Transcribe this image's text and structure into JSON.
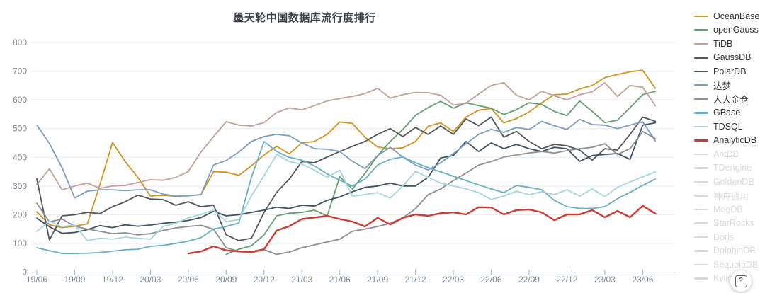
{
  "help_button": {
    "label": "?"
  },
  "chart_data": {
    "type": "line",
    "title": "墨天轮中国数据库流行度排行",
    "xlabel": "",
    "ylabel": "",
    "ylim": [
      0,
      800
    ],
    "y_ticks": [
      0,
      100,
      200,
      300,
      400,
      500,
      600,
      700,
      800
    ],
    "grid": "horizontal",
    "legend_position": "right",
    "x_start": "19/06",
    "x_step": "1 month",
    "x_tick_labels": [
      "19/06",
      "19/09",
      "19/12",
      "20/03",
      "20/06",
      "20/09",
      "20/12",
      "21/03",
      "21/06",
      "21/09",
      "21/12",
      "22/03",
      "22/06",
      "22/09",
      "22/12",
      "23/03",
      "23/06"
    ],
    "series": [
      {
        "name": "OceanBase",
        "color": "#d6921e",
        "disabled": false,
        "width": 1.8,
        "values": [
          210,
          165,
          155,
          160,
          168,
          305,
          452,
          385,
          330,
          265,
          268,
          264,
          266,
          270,
          350,
          348,
          337,
          370,
          408,
          438,
          412,
          450,
          455,
          480,
          523,
          518,
          470,
          436,
          430,
          433,
          455,
          508,
          520,
          490,
          540,
          564,
          570,
          520,
          535,
          558,
          590,
          618,
          620,
          638,
          650,
          678,
          688,
          698,
          703,
          640
        ]
      },
      {
        "name": "openGauss",
        "color": "#63a071",
        "disabled": false,
        "width": 1.8,
        "values": [
          null,
          null,
          null,
          null,
          null,
          null,
          null,
          null,
          null,
          null,
          null,
          null,
          null,
          null,
          null,
          62,
          80,
          92,
          130,
          196,
          205,
          208,
          216,
          196,
          332,
          290,
          344,
          406,
          455,
          497,
          546,
          573,
          595,
          571,
          590,
          580,
          571,
          549,
          566,
          590,
          584,
          560,
          545,
          596,
          560,
          521,
          529,
          573,
          618,
          630
        ]
      },
      {
        "name": "TiDB",
        "color": "#c4a098",
        "disabled": false,
        "width": 1.8,
        "values": [
          305,
          360,
          287,
          300,
          310,
          292,
          300,
          302,
          312,
          322,
          320,
          330,
          350,
          418,
          472,
          524,
          512,
          509,
          521,
          556,
          572,
          565,
          580,
          596,
          605,
          612,
          622,
          640,
          606,
          618,
          626,
          625,
          616,
          582,
          588,
          620,
          650,
          660,
          616,
          600,
          630,
          614,
          600,
          618,
          628,
          660,
          612,
          650,
          644,
          580
        ]
      },
      {
        "name": "GaussDB",
        "color": "#53575c",
        "disabled": false,
        "width": 1.8,
        "values": [
          325,
          112,
          196,
          200,
          208,
          204,
          228,
          245,
          268,
          255,
          253,
          233,
          245,
          228,
          233,
          130,
          110,
          118,
          208,
          278,
          324,
          385,
          381,
          401,
          420,
          438,
          455,
          480,
          500,
          472,
          504,
          480,
          509,
          480,
          534,
          510,
          540,
          470,
          490,
          455,
          430,
          445,
          440,
          425,
          390,
          430,
          425,
          480,
          540,
          525
        ]
      },
      {
        "name": "PolarDB",
        "color": "#3d5266",
        "disabled": false,
        "width": 1.8,
        "values": [
          188,
          158,
          135,
          138,
          148,
          162,
          155,
          165,
          160,
          164,
          170,
          174,
          180,
          190,
          212,
          196,
          200,
          208,
          216,
          226,
          222,
          233,
          230,
          250,
          262,
          280,
          295,
          300,
          310,
          300,
          300,
          330,
          398,
          406,
          455,
          420,
          450,
          430,
          445,
          430,
          420,
          435,
          430,
          386,
          406,
          410,
          413,
          393,
          512,
          520
        ]
      },
      {
        "name": "达梦",
        "color": "#7d9cc4",
        "disabled": false,
        "width": 1.8,
        "values": [
          512,
          448,
          364,
          258,
          282,
          287,
          287,
          284,
          287,
          287,
          272,
          265,
          266,
          270,
          373,
          389,
          418,
          455,
          472,
          480,
          475,
          450,
          430,
          428,
          420,
          386,
          361,
          406,
          435,
          401,
          373,
          356,
          381,
          413,
          447,
          480,
          497,
          487,
          504,
          497,
          525,
          510,
          497,
          532,
          514,
          512,
          500,
          512,
          524,
          457
        ]
      },
      {
        "name": "人大金仓",
        "color": "#8c8f93",
        "disabled": false,
        "width": 1.8,
        "values": [
          240,
          175,
          185,
          160,
          150,
          142,
          134,
          137,
          130,
          134,
          145,
          154,
          159,
          163,
          150,
          85,
          73,
          68,
          78,
          62,
          70,
          85,
          95,
          105,
          115,
          142,
          150,
          159,
          170,
          189,
          221,
          270,
          290,
          319,
          345,
          373,
          385,
          401,
          408,
          415,
          420,
          415,
          423,
          430,
          435,
          447,
          410,
          430,
          490,
          465
        ]
      },
      {
        "name": "GBase",
        "color": "#68aec4",
        "disabled": false,
        "width": 1.8,
        "values": [
          85,
          75,
          65,
          65,
          66,
          68,
          73,
          78,
          80,
          90,
          93,
          100,
          108,
          120,
          150,
          159,
          171,
          330,
          455,
          420,
          400,
          390,
          370,
          342,
          320,
          300,
          324,
          373,
          393,
          401,
          381,
          364,
          349,
          334,
          319,
          304,
          290,
          277,
          302,
          295,
          287,
          250,
          228,
          222,
          222,
          228,
          256,
          278,
          302,
          324
        ]
      },
      {
        "name": "TDSQL",
        "color": "#a6d5dd",
        "disabled": false,
        "width": 1.8,
        "values": [
          142,
          178,
          158,
          164,
          110,
          118,
          115,
          122,
          118,
          115,
          159,
          170,
          189,
          201,
          216,
          176,
          183,
          265,
          336,
          410,
          385,
          376,
          355,
          330,
          355,
          265,
          270,
          277,
          258,
          300,
          351,
          330,
          310,
          300,
          290,
          277,
          253,
          265,
          282,
          270,
          280,
          270,
          287,
          265,
          290,
          263,
          295,
          314,
          332,
          349
        ]
      },
      {
        "name": "AnalyticDB",
        "color": "#d23a31",
        "disabled": false,
        "width": 2.4,
        "values": [
          null,
          null,
          null,
          null,
          null,
          null,
          null,
          null,
          null,
          null,
          null,
          null,
          65,
          72,
          90,
          76,
          72,
          70,
          80,
          145,
          160,
          185,
          190,
          196,
          185,
          176,
          159,
          189,
          166,
          189,
          201,
          196,
          205,
          208,
          201,
          226,
          225,
          201,
          216,
          218,
          208,
          181,
          201,
          201,
          216,
          191,
          213,
          191,
          231,
          204
        ]
      },
      {
        "name": "AntDB",
        "color": "#d9d9d9",
        "disabled": true
      },
      {
        "name": "TDengine",
        "color": "#d9d9d9",
        "disabled": true
      },
      {
        "name": "GoldenDB",
        "color": "#d9d9d9",
        "disabled": true
      },
      {
        "name": "神舟通用",
        "color": "#d9d9d9",
        "disabled": true
      },
      {
        "name": "MogDB",
        "color": "#d9d9d9",
        "disabled": true
      },
      {
        "name": "StarRocks",
        "color": "#d9d9d9",
        "disabled": true
      },
      {
        "name": "Doris",
        "color": "#d9d9d9",
        "disabled": true
      },
      {
        "name": "DolphinDB",
        "color": "#d9d9d9",
        "disabled": true
      },
      {
        "name": "SequoiaDB",
        "color": "#d9d9d9",
        "disabled": true
      },
      {
        "name": "Kyligence",
        "color": "#d9d9d9",
        "disabled": true
      }
    ],
    "axis_colors": {
      "grid": "#e3eaf3",
      "axis": "#aab0bb",
      "tick_label": "#80858f"
    }
  }
}
